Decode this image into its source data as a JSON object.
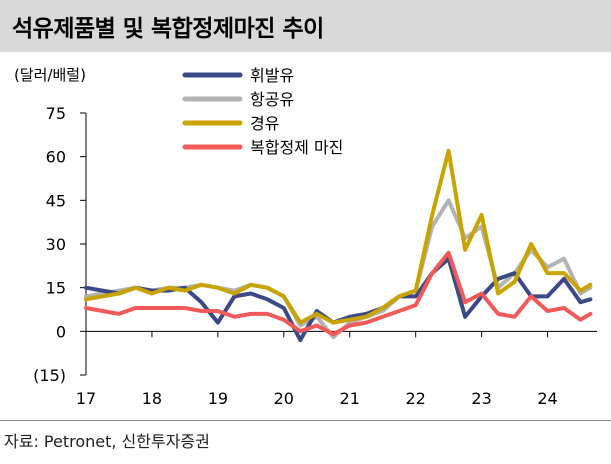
{
  "title": "석유제품별 및 복합정제마진 추이",
  "source": "자료: Petronet, 신한투자증권",
  "colors": {
    "title_bg": "#d9d9d9",
    "휘발유": "#3b4a86",
    "항공유": "#b3b3b3",
    "경유": "#c9a400",
    "복합정제마진": "#f25a5a"
  },
  "chart_data": {
    "type": "line",
    "title": "석유제품별 및 복합정제마진 추이",
    "unit_label": "(달러/배럴)",
    "xlabel": "",
    "ylabel": "",
    "ylim": [
      -15,
      75
    ],
    "yticks": [
      "75",
      "60",
      "45",
      "30",
      "15",
      "0",
      "(15)"
    ],
    "xlim": [
      2017,
      2024.75
    ],
    "xticks": [
      "17",
      "18",
      "19",
      "20",
      "21",
      "22",
      "23",
      "24"
    ],
    "grid": false,
    "legend_position": "top-center",
    "x": [
      2017.0,
      2017.25,
      2017.5,
      2017.75,
      2018.0,
      2018.25,
      2018.5,
      2018.75,
      2019.0,
      2019.25,
      2019.5,
      2019.75,
      2020.0,
      2020.25,
      2020.5,
      2020.75,
      2021.0,
      2021.25,
      2021.5,
      2021.75,
      2022.0,
      2022.25,
      2022.5,
      2022.75,
      2023.0,
      2023.25,
      2023.5,
      2023.75,
      2024.0,
      2024.25,
      2024.5,
      2024.65
    ],
    "series": [
      {
        "name": "휘발유",
        "values": [
          15,
          14,
          13,
          15,
          14,
          14,
          15,
          10,
          3,
          12,
          13,
          11,
          8,
          -3,
          7,
          3,
          5,
          6,
          8,
          12,
          12,
          20,
          25,
          5,
          12,
          18,
          20,
          12,
          12,
          18,
          10,
          11
        ]
      },
      {
        "name": "항공유",
        "values": [
          12,
          13,
          14,
          15,
          14,
          15,
          15,
          16,
          15,
          14,
          16,
          15,
          12,
          2,
          5,
          -2,
          3,
          5,
          7,
          12,
          14,
          36,
          45,
          32,
          36,
          15,
          20,
          28,
          22,
          25,
          13,
          15
        ]
      },
      {
        "name": "경유",
        "values": [
          11,
          12,
          13,
          15,
          13,
          15,
          14,
          16,
          15,
          13,
          16,
          15,
          12,
          3,
          6,
          3,
          4,
          5,
          8,
          12,
          14,
          40,
          62,
          28,
          40,
          13,
          17,
          30,
          20,
          20,
          14,
          16
        ]
      },
      {
        "name": "복합정제 마진",
        "values": [
          8,
          7,
          6,
          8,
          8,
          8,
          8,
          7,
          7,
          5,
          6,
          6,
          4,
          0,
          2,
          -1,
          2,
          3,
          5,
          7,
          9,
          20,
          27,
          10,
          13,
          6,
          5,
          12,
          7,
          8,
          4,
          6
        ]
      }
    ]
  }
}
